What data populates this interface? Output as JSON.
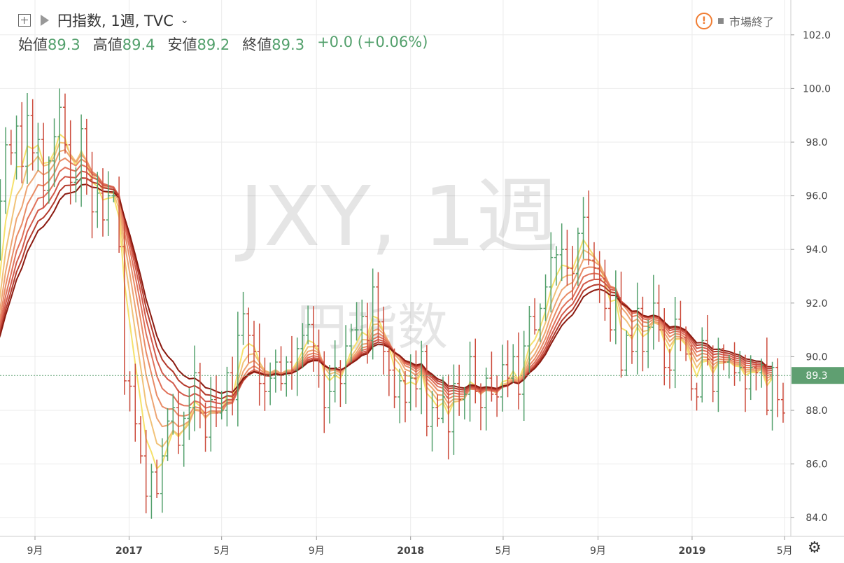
{
  "header": {
    "title": "円指数, 1週, TVC",
    "open_label": "始値",
    "open_value": "89.3",
    "high_label": "高値",
    "high_value": "89.4",
    "low_label": "安値",
    "low_value": "89.2",
    "close_label": "終値",
    "close_value": "89.3",
    "change": "+0.0 (+0.06%)"
  },
  "status": {
    "market_text": "市場終了",
    "warning_icon": "warning-icon"
  },
  "watermark": {
    "symbol": "JXY, 1週",
    "name": "円指数"
  },
  "colors": {
    "up": "#53a06c",
    "down": "#cc4b3c",
    "price_tag": "#5f9f71",
    "ema_fast": "#f5e16c",
    "ema_slow": "#8b1a10"
  },
  "chart_data": {
    "type": "ohlc",
    "interval": "1週",
    "y_axis": {
      "ylim": [
        83.3,
        103.3
      ],
      "ticks": [
        84.0,
        86.0,
        88.0,
        90.0,
        92.0,
        94.0,
        96.0,
        98.0,
        100.0,
        102.0
      ],
      "tick_labels": [
        "84.0",
        "86.0",
        "88.0",
        "90.0",
        "92.0",
        "94.0",
        "96.0",
        "98.0",
        "100.0",
        "102.0"
      ]
    },
    "x_axis": {
      "labels": [
        {
          "date": "2016-09-01",
          "text": "9月",
          "bold": false
        },
        {
          "date": "2017-01-01",
          "text": "2017",
          "bold": true
        },
        {
          "date": "2017-05-01",
          "text": "5月",
          "bold": false
        },
        {
          "date": "2017-09-01",
          "text": "9月",
          "bold": false
        },
        {
          "date": "2018-01-01",
          "text": "2018",
          "bold": true
        },
        {
          "date": "2018-05-01",
          "text": "5月",
          "bold": false
        },
        {
          "date": "2018-09-01",
          "text": "9月",
          "bold": false
        },
        {
          "date": "2019-01-01",
          "text": "2019",
          "bold": true
        },
        {
          "date": "2019-05-01",
          "text": "5月",
          "bold": false
        }
      ]
    },
    "last_price": 89.3,
    "closes": [
      93.8,
      95.8,
      97.9,
      97.6,
      98.6,
      97.1,
      99.0,
      97.6,
      98.1,
      96.2,
      97.3,
      98.2,
      99.3,
      97.9,
      96.5,
      96.6,
      98.5,
      96.6,
      95.4,
      96.1,
      95.1,
      96.0,
      96.0,
      94.1,
      89.1,
      88.9,
      87.5,
      86.3,
      84.8,
      85.7,
      84.9,
      86.3,
      87.6,
      88.1,
      86.7,
      87.7,
      88.1,
      89.4,
      87.9,
      87.0,
      88.4,
      87.9,
      88.0,
      89.4,
      88.4,
      90.8,
      91.6,
      90.8,
      90.2,
      89.0,
      88.7,
      89.2,
      89.8,
      89.0,
      89.8,
      89.5,
      90.3,
      90.8,
      91.2,
      90.4,
      89.8,
      88.1,
      88.7,
      89.6,
      89.0,
      90.4,
      91.0,
      91.0,
      91.5,
      90.6,
      92.6,
      91.3,
      90.2,
      89.5,
      88.5,
      89.1,
      88.3,
      89.2,
      88.8,
      90.2,
      87.4,
      88.1,
      87.7,
      88.5,
      87.2,
      89.0,
      88.4,
      88.6,
      90.0,
      88.7,
      88.1,
      89.2,
      88.6,
      88.5,
      89.7,
      89.2,
      90.0,
      88.6,
      90.4,
      91.5,
      91.0,
      91.8,
      92.6,
      93.7,
      93.8,
      94.0,
      93.3,
      93.1,
      94.6,
      95.2,
      93.6,
      93.3,
      92.9,
      91.8,
      91.0,
      92.2,
      89.5,
      90.8,
      90.2,
      91.8,
      90.2,
      91.1,
      92.0,
      91.0,
      89.6,
      89.5,
      91.4,
      90.7,
      90.1,
      88.8,
      88.5,
      90.6,
      89.9,
      88.7,
      90.3,
      89.8,
      89.9,
      89.4,
      89.6,
      88.8,
      89.6,
      89.4,
      89.7,
      88.0,
      89.6,
      88.4,
      87.9,
      87.6,
      89.6,
      89.6,
      88.0,
      89.7,
      88.4,
      88.1,
      88.8,
      88.6,
      88.0,
      89.0,
      89.6,
      88.6,
      89.0,
      90.3,
      91.8,
      92.5,
      91.3,
      90.6,
      91.3,
      91.0,
      90.7,
      90.5,
      89.6,
      90.2,
      90.0,
      89.9,
      90.0,
      90.7,
      90.8,
      89.9,
      89.3,
      89.3
    ],
    "ema_ribbon": {
      "count": 8,
      "description": "EMA ribbon, yellow (fast) to dark red (slow)"
    }
  }
}
